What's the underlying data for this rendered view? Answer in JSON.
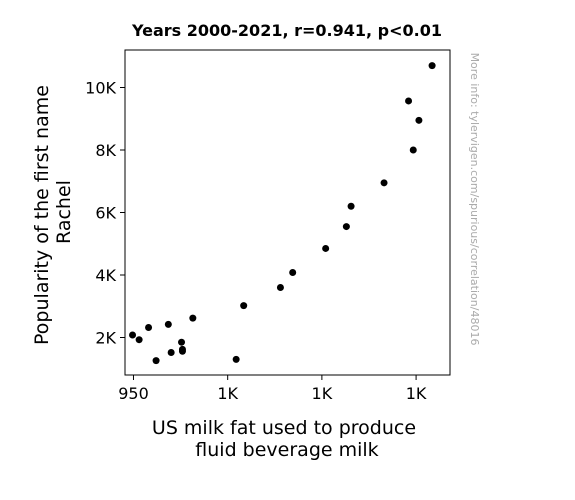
{
  "chart_data": {
    "type": "scatter",
    "title": "Years 2000-2021, r=0.941, p<0.01",
    "xlabel": [
      "US milk fat used to produce",
      "fluid beverage milk"
    ],
    "ylabel": [
      "Popularity of the first name",
      "Rachel"
    ],
    "watermark": "More info: tylervigen.com/spurious/correlation/48016",
    "xlim": [
      941,
      1286
    ],
    "ylim": [
      800,
      11200
    ],
    "x_ticks": [
      {
        "value": 950,
        "label": "950"
      },
      {
        "value": 1050,
        "label": "1K"
      },
      {
        "value": 1150,
        "label": "1K"
      },
      {
        "value": 1250,
        "label": "1K"
      }
    ],
    "y_ticks": [
      {
        "value": 2000,
        "label": "2K"
      },
      {
        "value": 4000,
        "label": "4K"
      },
      {
        "value": 6000,
        "label": "6K"
      },
      {
        "value": 8000,
        "label": "8K"
      },
      {
        "value": 10000,
        "label": "10K"
      }
    ],
    "point_color": "#000000",
    "points": [
      {
        "x": 1267,
        "y": 10700
      },
      {
        "x": 1242,
        "y": 9570
      },
      {
        "x": 1253,
        "y": 8950
      },
      {
        "x": 1247,
        "y": 8000
      },
      {
        "x": 1216,
        "y": 6950
      },
      {
        "x": 1181,
        "y": 6200
      },
      {
        "x": 1176,
        "y": 5550
      },
      {
        "x": 1154,
        "y": 4850
      },
      {
        "x": 1119,
        "y": 4080
      },
      {
        "x": 1106,
        "y": 3600
      },
      {
        "x": 1067,
        "y": 3020
      },
      {
        "x": 1059,
        "y": 1300
      },
      {
        "x": 1013,
        "y": 2620
      },
      {
        "x": 1001,
        "y": 1850
      },
      {
        "x": 987,
        "y": 2420
      },
      {
        "x": 966,
        "y": 2320
      },
      {
        "x": 949,
        "y": 2080
      },
      {
        "x": 956,
        "y": 1930
      },
      {
        "x": 1002,
        "y": 1620
      },
      {
        "x": 1002,
        "y": 1560
      },
      {
        "x": 990,
        "y": 1520
      },
      {
        "x": 974,
        "y": 1260
      }
    ]
  }
}
